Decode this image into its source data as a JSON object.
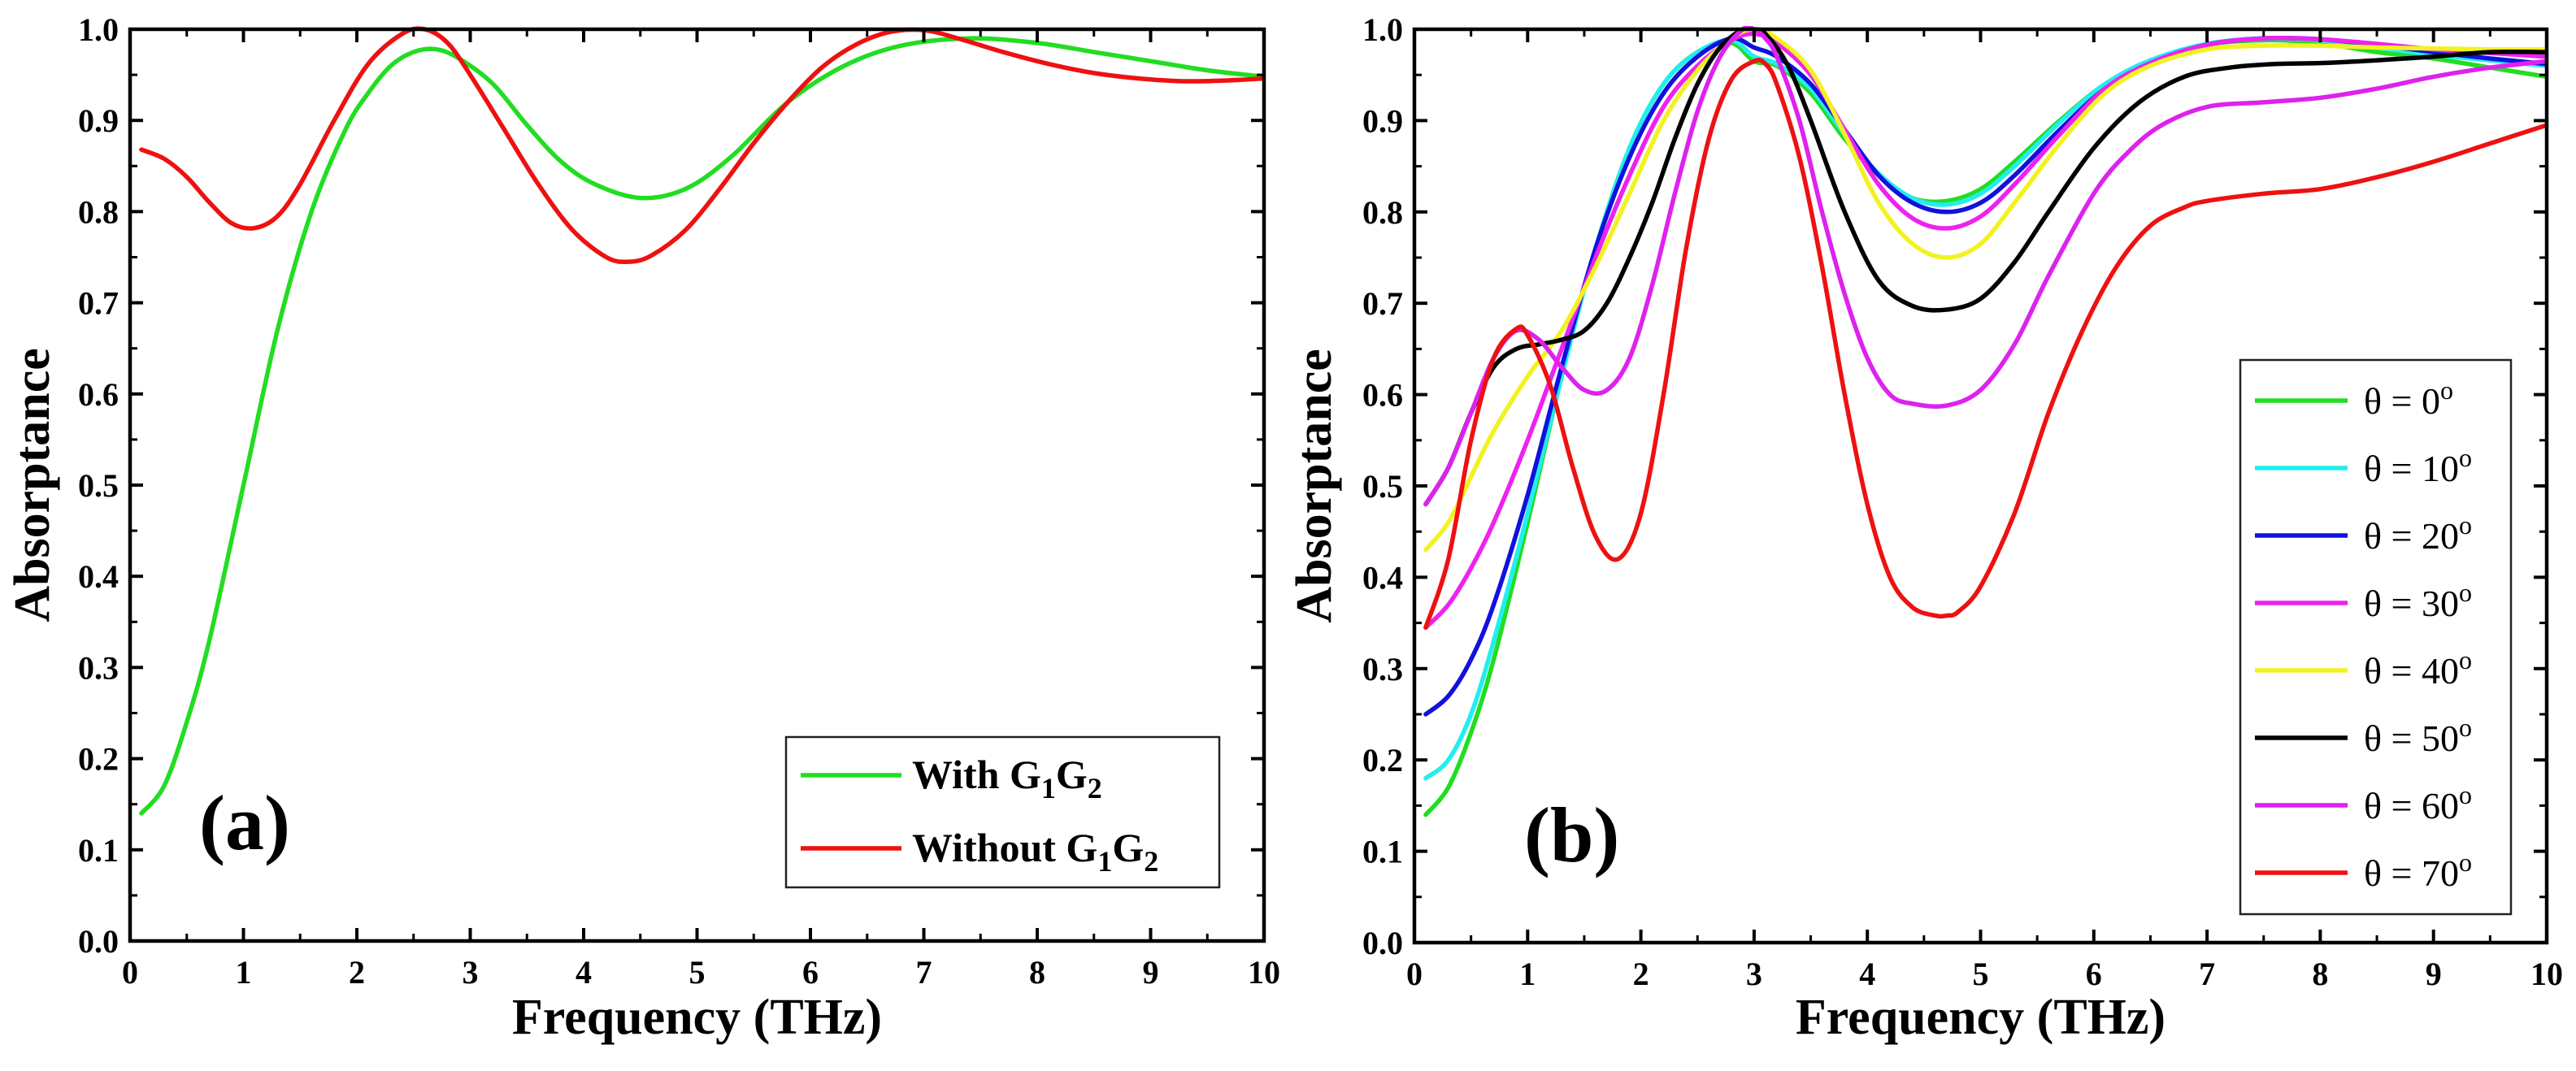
{
  "colors": {
    "green": "#22dd22",
    "red": "#ee1111",
    "cyan": "#22eeee",
    "blue": "#1111dd",
    "magenta": "#ee22ee",
    "yellow": "#f2f222",
    "black": "#000000",
    "violet": "#dd22ee",
    "axis": "#000000"
  },
  "chart_data": [
    {
      "type": "line",
      "panel_label": "(a)",
      "xlabel": "Frequency (THz)",
      "ylabel": "Absorptance",
      "xlim": [
        0,
        10
      ],
      "ylim": [
        0,
        1
      ],
      "xticks": [
        "0",
        "1",
        "2",
        "3",
        "4",
        "5",
        "6",
        "7",
        "8",
        "9",
        "10"
      ],
      "yticks": [
        "0.0",
        "0.1",
        "0.2",
        "0.3",
        "0.4",
        "0.5",
        "0.6",
        "0.7",
        "0.8",
        "0.9",
        "1.0"
      ],
      "grid": false,
      "legend_position": "bottom-right",
      "series": [
        {
          "legend_prefix": "With ",
          "name": "With G1G2",
          "color_key": "green",
          "x": [
            0.1,
            0.3,
            0.5,
            0.7,
            1.0,
            1.3,
            1.6,
            1.9,
            2.1,
            2.3,
            2.5,
            2.7,
            2.9,
            3.2,
            3.5,
            3.8,
            4.1,
            4.5,
            4.9,
            5.3,
            5.8,
            6.3,
            6.8,
            7.4,
            8.0,
            8.5,
            9.0,
            9.5,
            10.0
          ],
          "y": [
            0.14,
            0.17,
            0.24,
            0.33,
            0.5,
            0.67,
            0.8,
            0.89,
            0.93,
            0.96,
            0.975,
            0.978,
            0.968,
            0.94,
            0.895,
            0.855,
            0.83,
            0.815,
            0.825,
            0.86,
            0.92,
            0.96,
            0.982,
            0.99,
            0.985,
            0.975,
            0.965,
            0.955,
            0.948
          ]
        },
        {
          "legend_prefix": "Without ",
          "name": "Without G1G2",
          "color_key": "red",
          "x": [
            0.1,
            0.3,
            0.5,
            0.7,
            0.9,
            1.1,
            1.3,
            1.5,
            1.8,
            2.1,
            2.4,
            2.6,
            2.8,
            3.0,
            3.3,
            3.6,
            3.9,
            4.2,
            4.4,
            4.6,
            4.9,
            5.2,
            5.5,
            5.8,
            6.1,
            6.4,
            6.7,
            7.0,
            7.3,
            7.7,
            8.1,
            8.5,
            8.9,
            9.3,
            9.7,
            10.0
          ],
          "y": [
            0.868,
            0.858,
            0.838,
            0.81,
            0.787,
            0.782,
            0.795,
            0.83,
            0.9,
            0.962,
            0.995,
            1.0,
            0.985,
            0.95,
            0.89,
            0.83,
            0.78,
            0.75,
            0.745,
            0.752,
            0.78,
            0.825,
            0.875,
            0.92,
            0.958,
            0.983,
            0.997,
            0.999,
            0.99,
            0.975,
            0.962,
            0.952,
            0.946,
            0.943,
            0.944,
            0.946
          ]
        }
      ]
    },
    {
      "type": "line",
      "panel_label": "(b)",
      "xlabel": "Frequency (THz)",
      "ylabel": "Absorptance",
      "xlim": [
        0,
        10
      ],
      "ylim": [
        0,
        1
      ],
      "xticks": [
        "0",
        "1",
        "2",
        "3",
        "4",
        "5",
        "6",
        "7",
        "8",
        "9",
        "10"
      ],
      "yticks": [
        "0.0",
        "0.1",
        "0.2",
        "0.3",
        "0.4",
        "0.5",
        "0.6",
        "0.7",
        "0.8",
        "0.9",
        "1.0"
      ],
      "grid": false,
      "legend_position": "right",
      "legend_theta_prefix": "θ = ",
      "legend_degree_sup": "o",
      "series": [
        {
          "name": "θ = 0°",
          "angle": "0",
          "color_key": "green",
          "x": [
            0.1,
            0.3,
            0.5,
            0.7,
            1.0,
            1.3,
            1.6,
            1.9,
            2.2,
            2.5,
            2.8,
            3.0,
            3.2,
            3.5,
            3.8,
            4.1,
            4.4,
            4.7,
            5.0,
            5.3,
            5.7,
            6.1,
            6.5,
            7.0,
            7.5,
            8.0,
            8.5,
            9.0,
            9.5,
            10.0
          ],
          "y": [
            0.14,
            0.17,
            0.23,
            0.31,
            0.46,
            0.62,
            0.76,
            0.87,
            0.94,
            0.975,
            0.985,
            0.965,
            0.96,
            0.93,
            0.88,
            0.84,
            0.815,
            0.812,
            0.825,
            0.855,
            0.9,
            0.94,
            0.965,
            0.983,
            0.988,
            0.985,
            0.975,
            0.968,
            0.958,
            0.948
          ]
        },
        {
          "name": "θ = 10°",
          "angle": "10",
          "color_key": "cyan",
          "x": [
            0.1,
            0.3,
            0.5,
            0.7,
            1.0,
            1.3,
            1.6,
            1.9,
            2.2,
            2.5,
            2.8,
            3.0,
            3.2,
            3.5,
            3.8,
            4.1,
            4.4,
            4.7,
            5.0,
            5.3,
            5.7,
            6.1,
            6.5,
            7.0,
            7.5,
            8.0,
            8.5,
            9.0,
            9.5,
            10.0
          ],
          "y": [
            0.18,
            0.2,
            0.25,
            0.33,
            0.47,
            0.62,
            0.76,
            0.87,
            0.94,
            0.975,
            0.988,
            0.97,
            0.962,
            0.935,
            0.885,
            0.842,
            0.815,
            0.808,
            0.82,
            0.85,
            0.898,
            0.94,
            0.966,
            0.984,
            0.99,
            0.988,
            0.98,
            0.972,
            0.966,
            0.96
          ]
        },
        {
          "name": "θ = 20°",
          "angle": "20",
          "color_key": "blue",
          "x": [
            0.1,
            0.3,
            0.5,
            0.7,
            1.0,
            1.3,
            1.6,
            1.9,
            2.2,
            2.5,
            2.8,
            3.0,
            3.2,
            3.5,
            3.8,
            4.1,
            4.4,
            4.7,
            5.0,
            5.3,
            5.7,
            6.1,
            6.5,
            7.0,
            7.5,
            8.0,
            8.5,
            9.0,
            9.5,
            10.0
          ],
          "y": [
            0.25,
            0.27,
            0.31,
            0.37,
            0.49,
            0.63,
            0.76,
            0.86,
            0.93,
            0.97,
            0.99,
            0.98,
            0.97,
            0.94,
            0.89,
            0.84,
            0.81,
            0.8,
            0.81,
            0.84,
            0.89,
            0.935,
            0.963,
            0.983,
            0.99,
            0.989,
            0.983,
            0.975,
            0.968,
            0.962
          ]
        },
        {
          "name": "θ = 30°",
          "angle": "30",
          "color_key": "magenta",
          "x": [
            0.1,
            0.3,
            0.5,
            0.7,
            1.0,
            1.3,
            1.6,
            1.9,
            2.2,
            2.5,
            2.8,
            3.0,
            3.2,
            3.5,
            3.8,
            4.1,
            4.4,
            4.7,
            5.0,
            5.3,
            5.7,
            6.1,
            6.5,
            7.0,
            7.5,
            8.0,
            8.5,
            9.0,
            9.5,
            10.0
          ],
          "y": [
            0.345,
            0.37,
            0.41,
            0.46,
            0.55,
            0.65,
            0.75,
            0.84,
            0.915,
            0.96,
            0.988,
            0.995,
            0.985,
            0.95,
            0.89,
            0.83,
            0.793,
            0.782,
            0.795,
            0.83,
            0.885,
            0.935,
            0.963,
            0.983,
            0.99,
            0.989,
            0.984,
            0.978,
            0.974,
            0.97
          ]
        },
        {
          "name": "θ = 40°",
          "angle": "40",
          "color_key": "yellow",
          "x": [
            0.1,
            0.3,
            0.5,
            0.7,
            1.0,
            1.3,
            1.6,
            1.9,
            2.2,
            2.5,
            2.8,
            3.0,
            3.2,
            3.5,
            3.8,
            4.1,
            4.4,
            4.7,
            5.0,
            5.3,
            5.7,
            6.1,
            6.5,
            7.0,
            7.5,
            8.0,
            8.5,
            9.0,
            9.5,
            10.0
          ],
          "y": [
            0.43,
            0.46,
            0.51,
            0.56,
            0.62,
            0.67,
            0.74,
            0.82,
            0.9,
            0.955,
            0.99,
            1.0,
            0.99,
            0.955,
            0.885,
            0.81,
            0.765,
            0.75,
            0.765,
            0.81,
            0.875,
            0.93,
            0.96,
            0.978,
            0.982,
            0.982,
            0.98,
            0.979,
            0.978,
            0.978
          ]
        },
        {
          "name": "θ = 50°",
          "angle": "50",
          "color_key": "black",
          "x": [
            0.1,
            0.3,
            0.5,
            0.7,
            0.9,
            1.1,
            1.3,
            1.5,
            1.7,
            1.9,
            2.1,
            2.3,
            2.5,
            2.7,
            2.9,
            3.0,
            3.1,
            3.3,
            3.5,
            3.8,
            4.1,
            4.4,
            4.7,
            5.0,
            5.3,
            5.6,
            6.0,
            6.4,
            6.8,
            7.2,
            7.6,
            8.0,
            8.5,
            9.0,
            9.5,
            10.0
          ],
          "y": [
            0.48,
            0.52,
            0.58,
            0.63,
            0.65,
            0.655,
            0.66,
            0.67,
            0.7,
            0.75,
            0.81,
            0.88,
            0.94,
            0.98,
            1.0,
            1.0,
            0.995,
            0.96,
            0.9,
            0.8,
            0.725,
            0.697,
            0.693,
            0.705,
            0.745,
            0.8,
            0.87,
            0.92,
            0.948,
            0.958,
            0.962,
            0.963,
            0.966,
            0.97,
            0.975,
            0.975
          ]
        },
        {
          "name": "θ = 60°",
          "angle": "60",
          "color_key": "violet",
          "x": [
            0.1,
            0.3,
            0.5,
            0.7,
            0.9,
            1.1,
            1.3,
            1.5,
            1.7,
            1.9,
            2.1,
            2.3,
            2.5,
            2.7,
            2.9,
            3.0,
            3.1,
            3.2,
            3.4,
            3.6,
            3.8,
            4.0,
            4.2,
            4.4,
            4.7,
            5.0,
            5.3,
            5.6,
            6.0,
            6.3,
            6.6,
            7.0,
            7.5,
            8.0,
            8.5,
            9.0,
            9.5,
            10.0
          ],
          "y": [
            0.48,
            0.52,
            0.58,
            0.64,
            0.67,
            0.66,
            0.63,
            0.605,
            0.605,
            0.64,
            0.72,
            0.82,
            0.91,
            0.97,
            1.0,
            1.0,
            0.99,
            0.97,
            0.9,
            0.8,
            0.71,
            0.64,
            0.6,
            0.59,
            0.588,
            0.605,
            0.655,
            0.73,
            0.82,
            0.865,
            0.895,
            0.915,
            0.92,
            0.925,
            0.935,
            0.948,
            0.958,
            0.965
          ]
        },
        {
          "name": "θ = 70°",
          "angle": "70",
          "color_key": "red",
          "x": [
            0.1,
            0.3,
            0.5,
            0.7,
            0.9,
            1.0,
            1.2,
            1.4,
            1.6,
            1.8,
            2.0,
            2.2,
            2.4,
            2.6,
            2.8,
            3.0,
            3.1,
            3.2,
            3.4,
            3.6,
            3.8,
            4.0,
            4.2,
            4.4,
            4.6,
            4.7,
            4.8,
            5.0,
            5.3,
            5.6,
            5.9,
            6.2,
            6.5,
            6.8,
            7.0,
            7.5,
            8.0,
            8.5,
            9.0,
            9.5,
            10.0
          ],
          "y": [
            0.345,
            0.42,
            0.55,
            0.64,
            0.672,
            0.665,
            0.61,
            0.52,
            0.445,
            0.42,
            0.47,
            0.6,
            0.76,
            0.88,
            0.945,
            0.965,
            0.962,
            0.94,
            0.86,
            0.74,
            0.6,
            0.48,
            0.4,
            0.367,
            0.358,
            0.358,
            0.362,
            0.39,
            0.47,
            0.58,
            0.67,
            0.74,
            0.785,
            0.805,
            0.812,
            0.82,
            0.825,
            0.838,
            0.855,
            0.875,
            0.895
          ]
        }
      ]
    }
  ]
}
